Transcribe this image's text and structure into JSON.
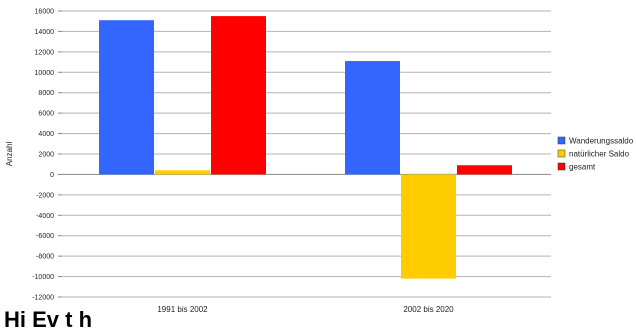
{
  "chart_data": {
    "type": "bar",
    "categories": [
      "1991 bis 2002",
      "2002 bis 2020"
    ],
    "series": [
      {
        "name": "Wanderungssaldo",
        "color": "#3366ff",
        "values": [
          15100,
          11100
        ]
      },
      {
        "name": "natürlicher Saldo",
        "color": "#ffcc00",
        "values": [
          400,
          -10200
        ]
      },
      {
        "name": "gesamt",
        "color": "#ff0000",
        "values": [
          15500,
          900
        ]
      }
    ],
    "ylabel": "Anzahl",
    "ylim": [
      -12000,
      16000
    ],
    "yticks": [
      -12000,
      -10000,
      -8000,
      -6000,
      -4000,
      -2000,
      0,
      2000,
      4000,
      6000,
      8000,
      10000,
      12000,
      14000,
      16000
    ],
    "grid": true,
    "legend": "right",
    "title": ""
  },
  "caption": "Hi  Ev  t  h"
}
